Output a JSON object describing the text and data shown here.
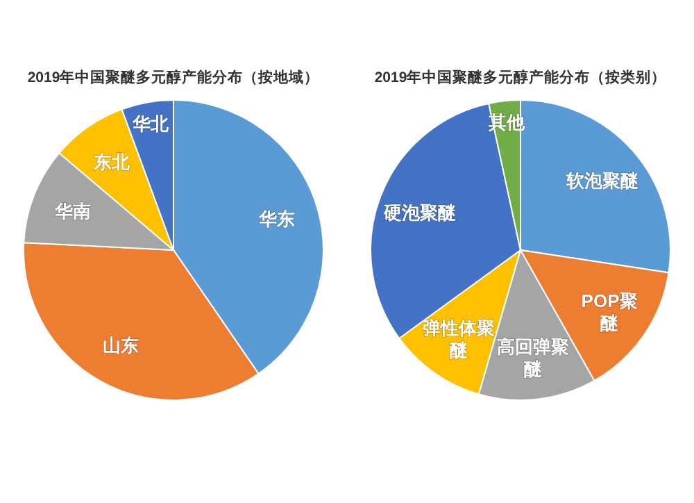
{
  "chart_data": [
    {
      "type": "pie",
      "title": "2019年中国聚醚多元醇产能分布（按地域）",
      "categories": [
        "华东",
        "山东",
        "华南",
        "东北",
        "华北"
      ],
      "values": [
        40.4,
        35.4,
        10.4,
        8.2,
        5.6
      ],
      "colors": [
        "#5b9bd5",
        "#ed7d31",
        "#a5a5a5",
        "#ffc000",
        "#4472c4"
      ]
    },
    {
      "type": "pie",
      "title": "2019年中国聚醚多元醇产能分布（按类别）",
      "categories": [
        "软泡聚醚",
        "POP聚醚",
        "高回弹聚醚",
        "弹性体聚醚",
        "硬泡聚醚",
        "其他"
      ],
      "values": [
        27.4,
        14.4,
        12.7,
        10.5,
        31.6,
        3.4
      ],
      "colors": [
        "#5b9bd5",
        "#ed7d31",
        "#a5a5a5",
        "#ffc000",
        "#4472c4",
        "#70ad47"
      ]
    }
  ]
}
